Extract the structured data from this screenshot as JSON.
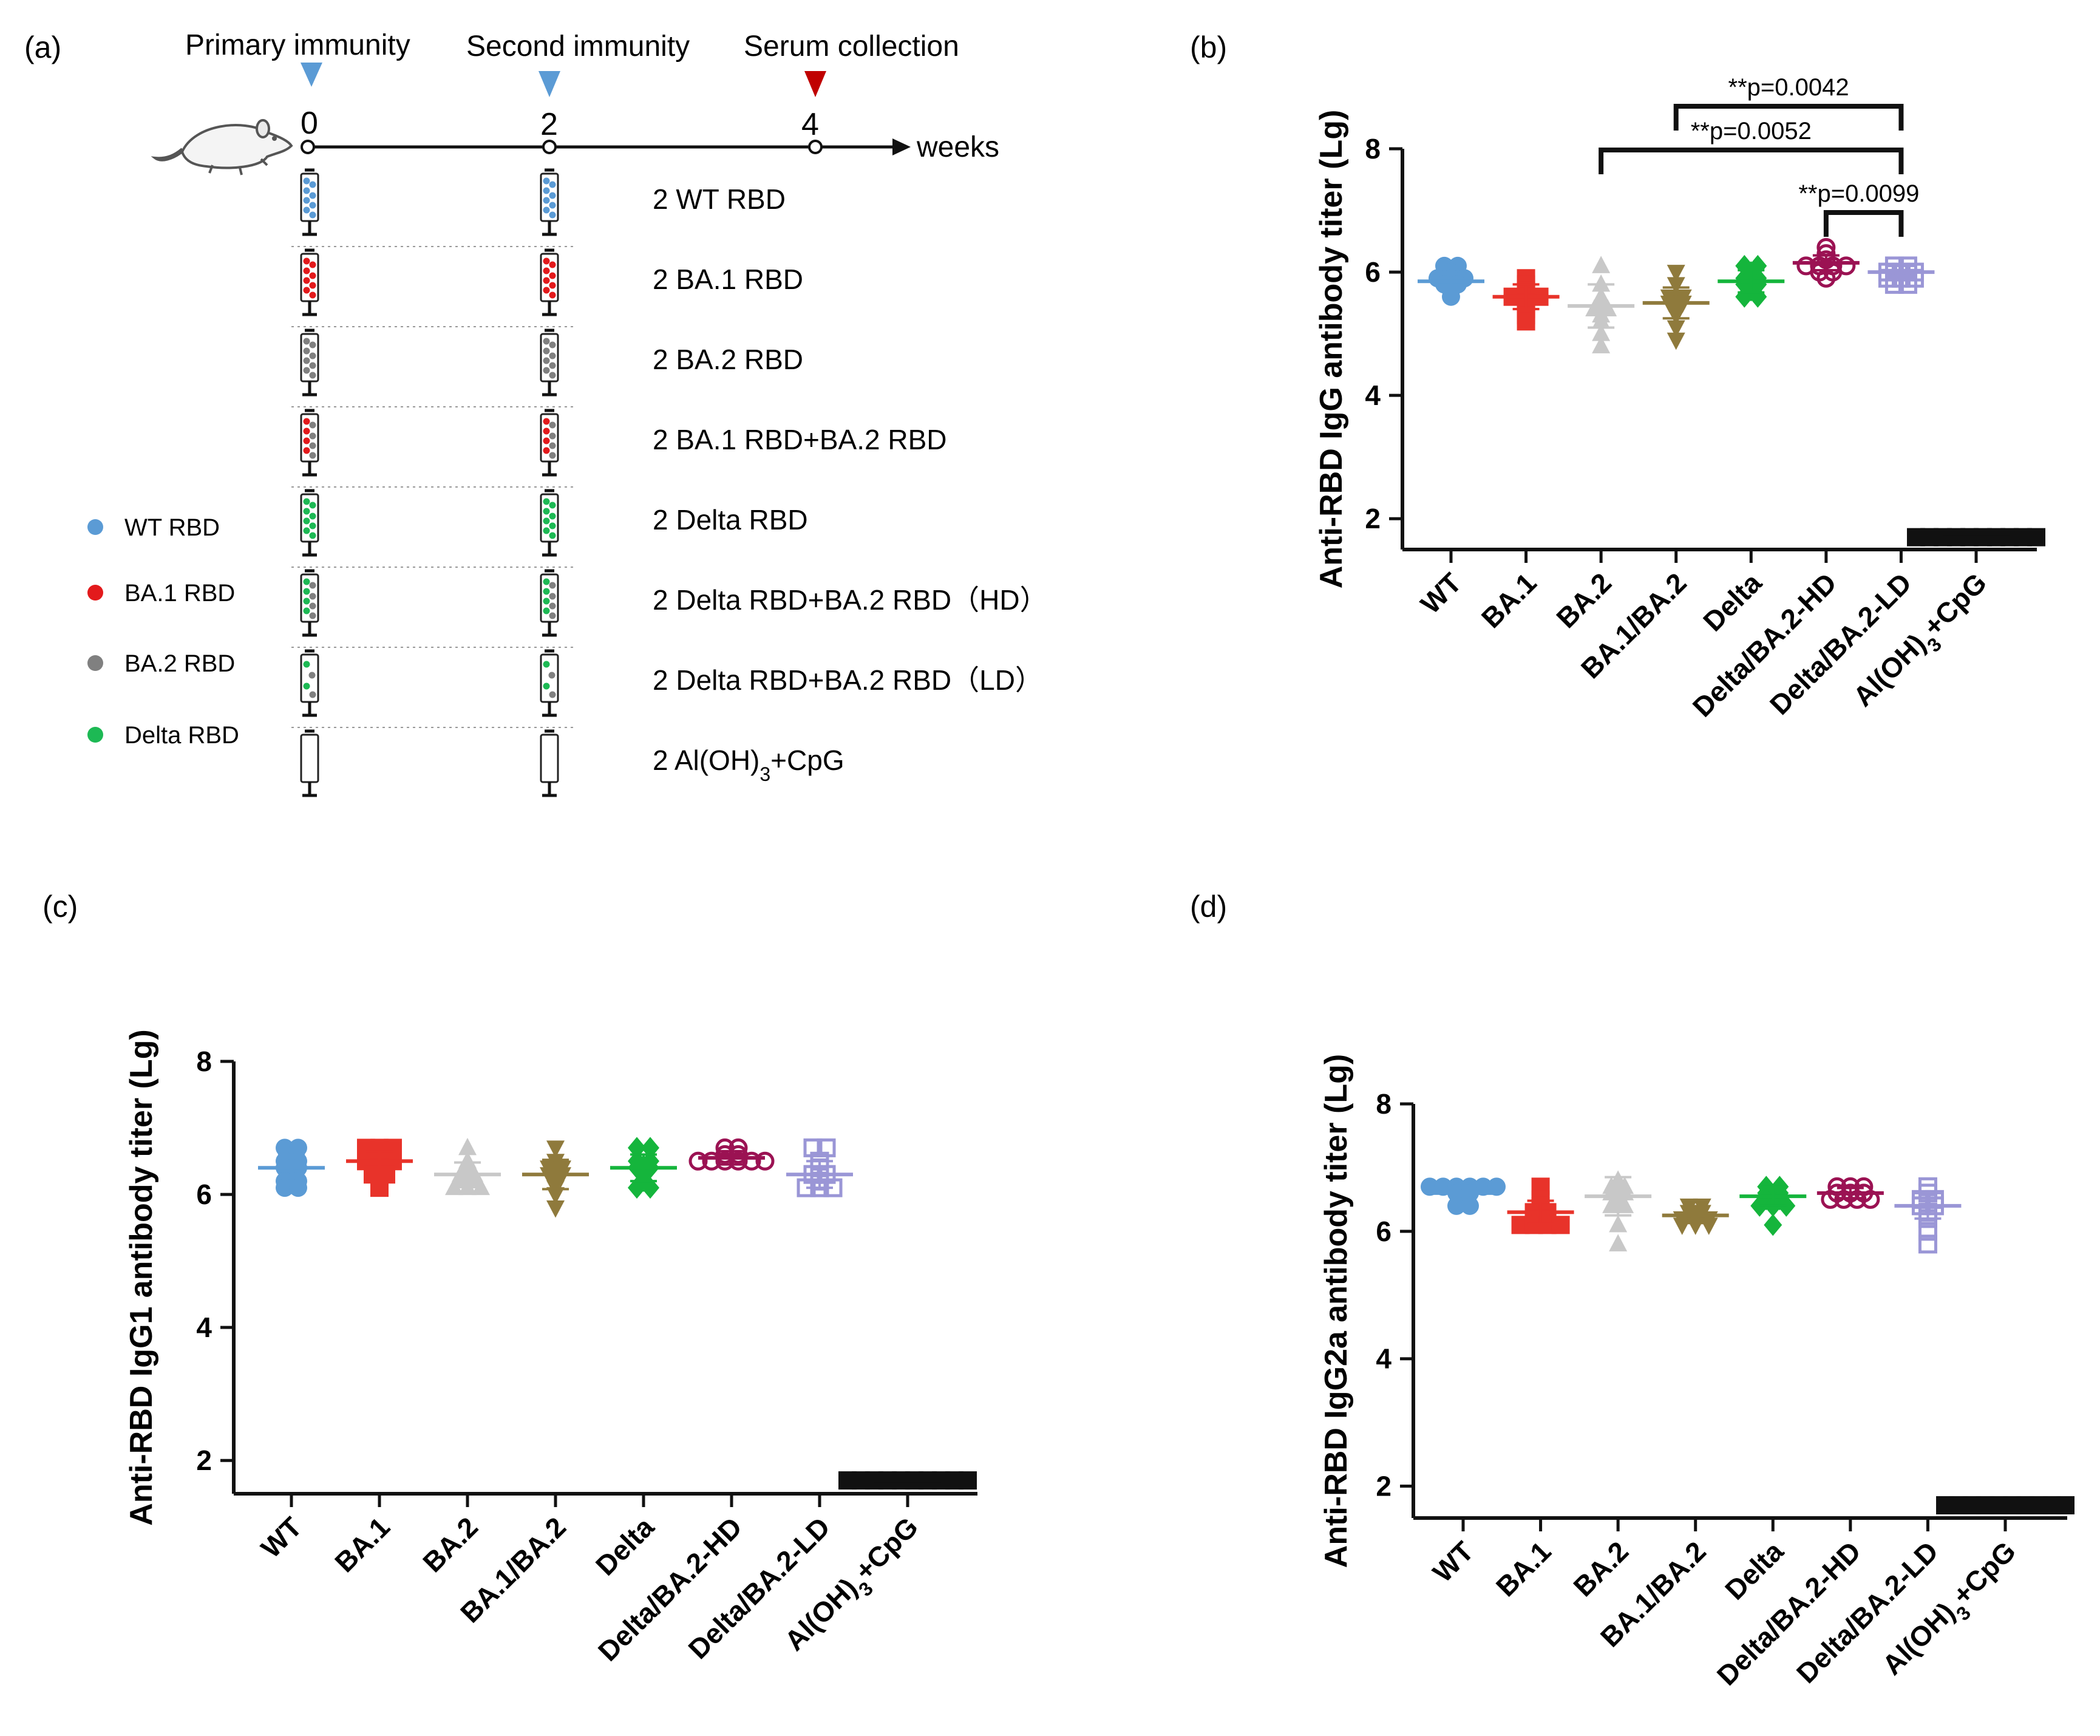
{
  "colors": {
    "WT": "#5b9bd5",
    "BA.1": "#e8332a",
    "BA.2": "#c8c8c8",
    "BA.1/BA.2": "#8f7a3c",
    "Delta": "#15b53c",
    "Delta/BA.2-HD": "#9b1253",
    "Delta/BA.2-LD": "#9a96d6",
    "Al(OH)3+CpG": "#111111",
    "legend_WT": "#5b9bd5",
    "legend_BA1": "#e31a1c",
    "legend_BA2": "#808080",
    "legend_Delta": "#1db954",
    "arrow_blue": "#5b9bd5",
    "arrow_red": "#c00000"
  },
  "panel_a": {
    "label": "(a)",
    "headers": [
      "Primary immunity",
      "Second immunity",
      "Serum collection"
    ],
    "timepoints": [
      "0",
      "2",
      "4"
    ],
    "axis_unit": "weeks",
    "groups": [
      {
        "text": "2  WT  RBD",
        "dots": [
          "WT"
        ]
      },
      {
        "text": "2 BA.1 RBD",
        "dots": [
          "BA.1"
        ]
      },
      {
        "text": "2 BA.2 RBD",
        "dots": [
          "BA.2"
        ]
      },
      {
        "text": "2 BA.1 RBD+BA.2 RBD",
        "dots": [
          "BA.1",
          "BA.2"
        ]
      },
      {
        "text": "2  Delta  RBD",
        "dots": [
          "Delta"
        ]
      },
      {
        "text": "2 Delta RBD+BA.2 RBD（HD）",
        "dots": [
          "Delta",
          "BA.2"
        ]
      },
      {
        "text": "2 Delta RBD+BA.2 RBD（LD）",
        "dots": [
          "Delta",
          "BA.2",
          "few"
        ]
      },
      {
        "text_pre": "2 Al(OH)",
        "text_sub": "3",
        "text_post": "+CpG",
        "dots": []
      }
    ],
    "legend": [
      {
        "label": "WT RBD",
        "color_key": "legend_WT"
      },
      {
        "label": "BA.1 RBD",
        "color_key": "legend_BA1"
      },
      {
        "label": "BA.2 RBD",
        "color_key": "legend_BA2"
      },
      {
        "label": "Delta RBD",
        "color_key": "legend_Delta"
      }
    ]
  },
  "chart_data": [
    {
      "panel": "(b)",
      "type": "scatter",
      "ylabel": "Anti-RBD IgG antibody titer (Lg)",
      "ylim": [
        1.5,
        8
      ],
      "yticks": [
        2,
        4,
        6,
        8
      ],
      "categories": [
        "WT",
        "BA.1",
        "BA.2",
        "BA.1/BA.2",
        "Delta",
        "Delta/BA.2-HD",
        "Delta/BA.2-LD",
        "Al(OH)3+CpG"
      ],
      "category_labels": [
        {
          "pre": "WT"
        },
        {
          "pre": "BA.1"
        },
        {
          "pre": "BA.2"
        },
        {
          "pre": "BA.1/BA.2"
        },
        {
          "pre": "Delta"
        },
        {
          "pre": "Delta/BA.2-HD"
        },
        {
          "pre": "Delta/BA.2-LD"
        },
        {
          "pre": "Al(OH)",
          "sub": "3",
          "post": "+CpG"
        }
      ],
      "markers": [
        "circle",
        "square",
        "triangle",
        "triangle-down",
        "diamond",
        "circle-open",
        "square-open",
        "square"
      ],
      "series": [
        {
          "name": "WT",
          "mean": 5.85,
          "sd": 0.12,
          "points": [
            6.1,
            6.1,
            6.0,
            5.9,
            5.9,
            5.9,
            5.8,
            5.8,
            5.7,
            5.6
          ]
        },
        {
          "name": "BA.1",
          "mean": 5.6,
          "sd": 0.2,
          "points": [
            5.9,
            5.8,
            5.7,
            5.6,
            5.6,
            5.6,
            5.5,
            5.4,
            5.3,
            5.2
          ]
        },
        {
          "name": "BA.2",
          "mean": 5.45,
          "sd": 0.35,
          "points": [
            6.1,
            5.8,
            5.6,
            5.5,
            5.4,
            5.4,
            5.3,
            5.2,
            5.0,
            4.8
          ]
        },
        {
          "name": "BA.1/BA.2",
          "mean": 5.5,
          "sd": 0.25,
          "points": [
            6.0,
            5.8,
            5.6,
            5.6,
            5.5,
            5.5,
            5.4,
            5.3,
            5.1,
            4.9
          ]
        },
        {
          "name": "Delta",
          "mean": 5.85,
          "sd": 0.18,
          "points": [
            6.1,
            6.1,
            6.0,
            5.9,
            5.9,
            5.8,
            5.8,
            5.7,
            5.6,
            5.6
          ]
        },
        {
          "name": "Delta/BA.2-HD",
          "mean": 6.15,
          "sd": 0.12,
          "points": [
            6.4,
            6.3,
            6.2,
            6.1,
            6.1,
            6.1,
            6.1,
            6.0,
            6.0,
            5.9
          ]
        },
        {
          "name": "Delta/BA.2-LD",
          "mean": 6.0,
          "sd": 0.1,
          "points": [
            6.1,
            6.1,
            6.0,
            6.0,
            6.0,
            5.9,
            5.9,
            5.9,
            5.8,
            5.8
          ]
        },
        {
          "name": "Al(OH)3+CpG",
          "mean": 1.7,
          "sd": 0.0,
          "points": [
            1.7,
            1.7,
            1.7,
            1.7,
            1.7,
            1.7,
            1.7,
            1.7,
            1.7,
            1.7
          ]
        }
      ],
      "significance": [
        {
          "from": "BA.1/BA.2",
          "to": "Delta/BA.2-LD",
          "label": "**p=0.0042"
        },
        {
          "from": "BA.2",
          "to": "Delta/BA.2-LD",
          "label": "**p=0.0052"
        },
        {
          "from": "Delta/BA.2-HD",
          "to": "Delta/BA.2-LD",
          "label": "**p=0.0099"
        }
      ]
    },
    {
      "panel": "(c)",
      "type": "scatter",
      "ylabel": "Anti-RBD IgG1 antibody titer (Lg)",
      "ylim": [
        1.5,
        8
      ],
      "yticks": [
        2,
        4,
        6,
        8
      ],
      "categories": [
        "WT",
        "BA.1",
        "BA.2",
        "BA.1/BA.2",
        "Delta",
        "Delta/BA.2-HD",
        "Delta/BA.2-LD",
        "Al(OH)3+CpG"
      ],
      "category_labels": [
        {
          "pre": "WT"
        },
        {
          "pre": "BA.1"
        },
        {
          "pre": "BA.2"
        },
        {
          "pre": "BA.1/BA.2"
        },
        {
          "pre": "Delta"
        },
        {
          "pre": "Delta/BA.2-HD"
        },
        {
          "pre": "Delta/BA.2-LD"
        },
        {
          "pre": "Al(OH)",
          "sub": "3",
          "post": "+CpG"
        }
      ],
      "markers": [
        "circle",
        "square",
        "triangle",
        "triangle-down",
        "diamond",
        "circle-open",
        "square-open",
        "square"
      ],
      "series": [
        {
          "name": "WT",
          "mean": 6.4,
          "sd": 0.2,
          "points": [
            6.7,
            6.7,
            6.5,
            6.5,
            6.4,
            6.4,
            6.2,
            6.2,
            6.1,
            6.1
          ]
        },
        {
          "name": "BA.1",
          "mean": 6.5,
          "sd": 0.18,
          "points": [
            6.7,
            6.7,
            6.7,
            6.5,
            6.5,
            6.5,
            6.4,
            6.3,
            6.3,
            6.1
          ]
        },
        {
          "name": "BA.2",
          "mean": 6.3,
          "sd": 0.18,
          "points": [
            6.7,
            6.5,
            6.4,
            6.3,
            6.3,
            6.2,
            6.2,
            6.1,
            6.1,
            6.1
          ]
        },
        {
          "name": "BA.1/BA.2",
          "mean": 6.3,
          "sd": 0.22,
          "points": [
            6.7,
            6.5,
            6.4,
            6.4,
            6.3,
            6.3,
            6.2,
            6.1,
            6.0,
            5.8
          ]
        },
        {
          "name": "Delta",
          "mean": 6.4,
          "sd": 0.2,
          "points": [
            6.7,
            6.7,
            6.5,
            6.5,
            6.4,
            6.4,
            6.3,
            6.2,
            6.1,
            6.1
          ]
        },
        {
          "name": "Delta/BA.2-HD",
          "mean": 6.55,
          "sd": 0.1,
          "points": [
            6.7,
            6.7,
            6.6,
            6.6,
            6.5,
            6.5,
            6.5,
            6.5,
            6.5,
            6.5
          ]
        },
        {
          "name": "Delta/BA.2-LD",
          "mean": 6.3,
          "sd": 0.2,
          "points": [
            6.7,
            6.7,
            6.5,
            6.4,
            6.3,
            6.3,
            6.2,
            6.1,
            6.1,
            6.1
          ]
        },
        {
          "name": "Al(OH)3+CpG",
          "mean": 1.7,
          "sd": 0.0,
          "points": [
            1.7,
            1.7,
            1.7,
            1.7,
            1.7,
            1.7,
            1.7,
            1.7,
            1.7,
            1.7
          ]
        }
      ],
      "significance": []
    },
    {
      "panel": "(d)",
      "type": "scatter",
      "ylabel": "Anti-RBD IgG2a antibody titer (Lg)",
      "ylim": [
        1.5,
        8
      ],
      "yticks": [
        2,
        4,
        6,
        8
      ],
      "categories": [
        "WT",
        "BA.1",
        "BA.2",
        "BA.1/BA.2",
        "Delta",
        "Delta/BA.2-HD",
        "Delta/BA.2-LD",
        "Al(OH)3+CpG"
      ],
      "category_labels": [
        {
          "pre": "WT"
        },
        {
          "pre": "BA.1"
        },
        {
          "pre": "BA.2"
        },
        {
          "pre": "BA.1/BA.2"
        },
        {
          "pre": "Delta"
        },
        {
          "pre": "Delta/BA.2-HD"
        },
        {
          "pre": "Delta/BA.2-LD"
        },
        {
          "pre": "Al(OH)",
          "sub": "3",
          "post": "+CpG"
        }
      ],
      "markers": [
        "circle",
        "square",
        "triangle",
        "triangle-down",
        "diamond",
        "circle-open",
        "square-open",
        "square"
      ],
      "series": [
        {
          "name": "WT",
          "mean": 6.6,
          "sd": 0.1,
          "points": [
            6.7,
            6.7,
            6.7,
            6.7,
            6.7,
            6.7,
            6.6,
            6.6,
            6.4,
            6.4
          ]
        },
        {
          "name": "BA.1",
          "mean": 6.3,
          "sd": 0.18,
          "points": [
            6.7,
            6.5,
            6.4,
            6.3,
            6.3,
            6.2,
            6.1,
            6.1,
            6.1,
            6.1
          ]
        },
        {
          "name": "BA.2",
          "mean": 6.55,
          "sd": 0.3,
          "points": [
            6.8,
            6.7,
            6.7,
            6.6,
            6.6,
            6.5,
            6.4,
            6.4,
            6.1,
            5.8
          ]
        },
        {
          "name": "BA.1/BA.2",
          "mean": 6.25,
          "sd": 0.12,
          "points": [
            6.4,
            6.4,
            6.3,
            6.3,
            6.2,
            6.2,
            6.2,
            6.1,
            6.1,
            6.1
          ]
        },
        {
          "name": "Delta",
          "mean": 6.55,
          "sd": 0.15,
          "points": [
            6.7,
            6.7,
            6.6,
            6.6,
            6.5,
            6.5,
            6.4,
            6.4,
            6.4,
            6.1
          ]
        },
        {
          "name": "Delta/BA.2-HD",
          "mean": 6.6,
          "sd": 0.08,
          "points": [
            6.7,
            6.7,
            6.7,
            6.6,
            6.6,
            6.6,
            6.5,
            6.5,
            6.5,
            6.5
          ]
        },
        {
          "name": "Delta/BA.2-LD",
          "mean": 6.4,
          "sd": 0.2,
          "points": [
            6.7,
            6.6,
            6.5,
            6.5,
            6.4,
            6.4,
            6.3,
            6.2,
            6.0,
            5.8
          ]
        },
        {
          "name": "Al(OH)3+CpG",
          "mean": 1.7,
          "sd": 0.0,
          "points": [
            1.7,
            1.7,
            1.7,
            1.7,
            1.7,
            1.7,
            1.7,
            1.7,
            1.7,
            1.7
          ]
        }
      ],
      "significance": []
    }
  ]
}
